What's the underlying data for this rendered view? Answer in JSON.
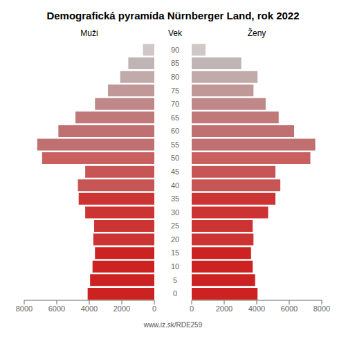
{
  "chart_data": {
    "type": "bar",
    "orientation": "horizontal",
    "title": "Demografická pyramída Nürnberger Land, rok 2022",
    "ylabel": "Vek",
    "annotations": [
      "www.iz.sk/RDE259"
    ],
    "categories": [
      0,
      5,
      10,
      15,
      20,
      25,
      30,
      35,
      40,
      45,
      50,
      55,
      60,
      65,
      70,
      75,
      80,
      85,
      90
    ],
    "series": [
      {
        "name": "Muži",
        "values": [
          4100,
          3950,
          3800,
          3650,
          3750,
          3700,
          4250,
          4650,
          4700,
          4250,
          6900,
          7200,
          5900,
          4850,
          3650,
          2850,
          2100,
          1600,
          700
        ],
        "colors": [
          "#cc2222",
          "#cc2222",
          "#cc2222",
          "#cc2222",
          "#cc3333",
          "#cc3333",
          "#cc3333",
          "#cc3333",
          "#c85555",
          "#c85555",
          "#c86060",
          "#c07070",
          "#c07070",
          "#c07878",
          "#c08888",
          "#c09898",
          "#c0aaaa",
          "#c0b5b5",
          "#d0c8c8"
        ]
      },
      {
        "name": "Ženy",
        "values": [
          4050,
          3900,
          3750,
          3650,
          3800,
          3750,
          4700,
          5150,
          5450,
          5150,
          7300,
          7600,
          6300,
          5350,
          4550,
          3800,
          4050,
          3050,
          850
        ],
        "colors": [
          "#cc2222",
          "#cc2222",
          "#cc2222",
          "#cc2222",
          "#cc3333",
          "#cc3333",
          "#cc3333",
          "#cc3333",
          "#c85555",
          "#c85555",
          "#c86060",
          "#c07070",
          "#c07070",
          "#c07878",
          "#c08888",
          "#c09898",
          "#c0aaaa",
          "#c0b5b5",
          "#d0c8c8"
        ]
      }
    ],
    "xlim": [
      0,
      8000
    ],
    "xticks": [
      0,
      2000,
      4000,
      6000,
      8000
    ],
    "grid": false
  }
}
